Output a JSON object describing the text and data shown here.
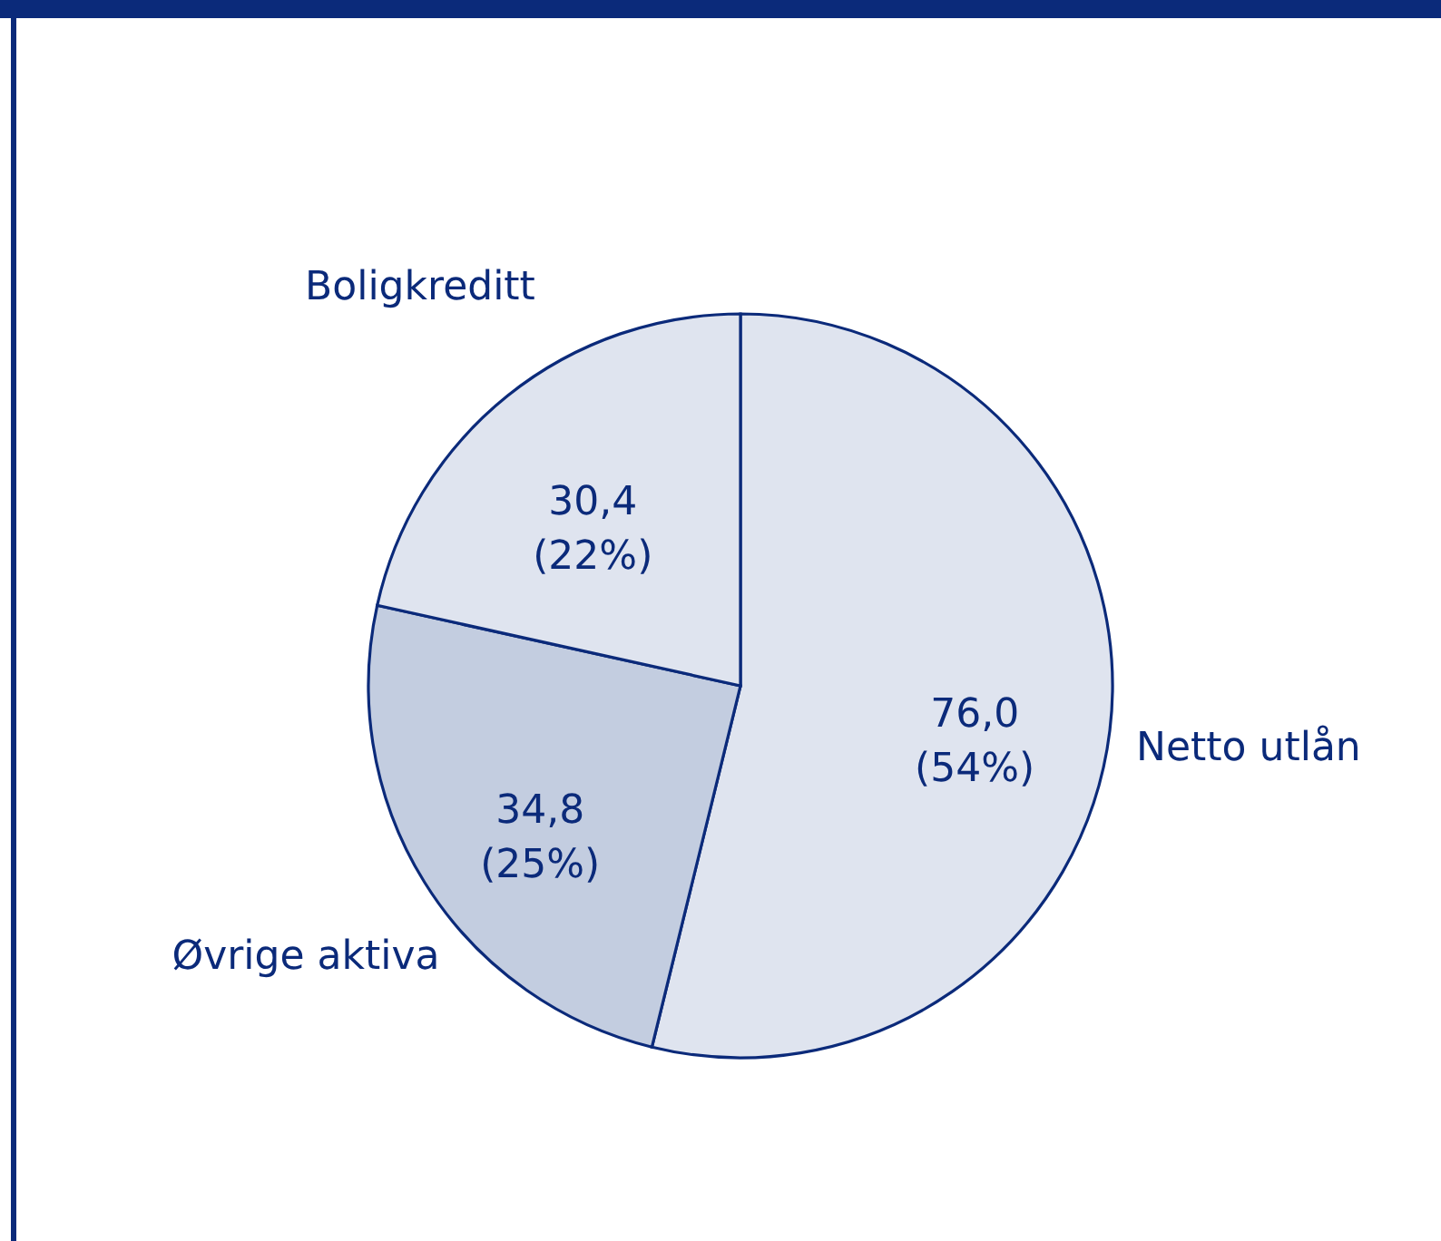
{
  "chart_data": {
    "type": "pie",
    "categories": [
      "Netto utlån",
      "Øvrige aktiva",
      "Boligkreditt"
    ],
    "values": [
      76.0,
      34.8,
      30.4
    ],
    "colors": [
      "#dfe4ef",
      "#c3cde0",
      "#dfe4ef"
    ],
    "value_labels": [
      "76,0 (54%)",
      "34,8 (25%)",
      "30,4 (22%)"
    ]
  }
}
